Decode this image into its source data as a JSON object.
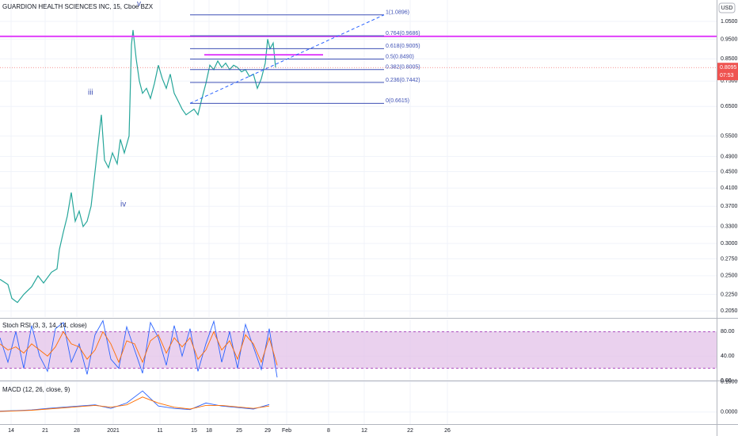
{
  "chart_data": [
    {
      "type": "line",
      "title": "GUARDION HEALTH SCIENCES INC, 15, Cboe BZX",
      "currency": "USD",
      "log_scale": true,
      "grid": true,
      "xlim": [
        0,
        181
      ],
      "ylim": [
        0.198,
        1.185
      ],
      "yticks": [
        {
          "value": 1.05,
          "label": "1.0500"
        },
        {
          "value": 0.95,
          "label": "0.9500"
        },
        {
          "value": 0.85,
          "label": "0.8500"
        },
        {
          "value": 0.75,
          "label": "0.7500"
        },
        {
          "value": 0.65,
          "label": "0.6500"
        },
        {
          "value": 0.55,
          "label": "0.5500"
        },
        {
          "value": 0.49,
          "label": "0.4900"
        },
        {
          "value": 0.45,
          "label": "0.4500"
        },
        {
          "value": 0.41,
          "label": "0.4100"
        },
        {
          "value": 0.37,
          "label": "0.3700"
        },
        {
          "value": 0.33,
          "label": "0.3300"
        },
        {
          "value": 0.3,
          "label": "0.3000"
        },
        {
          "value": 0.275,
          "label": "0.2750"
        },
        {
          "value": 0.25,
          "label": "0.2500"
        },
        {
          "value": 0.225,
          "label": "0.2250"
        },
        {
          "value": 0.205,
          "label": "0.2050"
        }
      ],
      "xticks": [
        {
          "value": 2.8,
          "label": "14"
        },
        {
          "value": 11.4,
          "label": "21"
        },
        {
          "value": 19.4,
          "label": "28"
        },
        {
          "value": 28.6,
          "label": "2021"
        },
        {
          "value": 40.4,
          "label": "11"
        },
        {
          "value": 49,
          "label": "15"
        },
        {
          "value": 52.8,
          "label": "18"
        },
        {
          "value": 60.4,
          "label": "25"
        },
        {
          "value": 67.6,
          "label": "29"
        },
        {
          "value": 72.4,
          "label": "Feb"
        },
        {
          "value": 83,
          "label": "8"
        },
        {
          "value": 92,
          "label": "12"
        },
        {
          "value": 103.6,
          "label": "22"
        },
        {
          "value": 113,
          "label": "26"
        }
      ],
      "series": [
        {
          "color": "#26a69a",
          "x": [
            0,
            2,
            3,
            4.4,
            6,
            8,
            9.6,
            11,
            13,
            14.4,
            15,
            16,
            17,
            18,
            19,
            20,
            21,
            22,
            23,
            24,
            25,
            25.6,
            26.4,
            27.4,
            28.4,
            29.6,
            30.4,
            31.4,
            32.6,
            33.2,
            33.6,
            34.4,
            35.2,
            36,
            37,
            38,
            39,
            40,
            41,
            42,
            43,
            44,
            45,
            46,
            47,
            48,
            49,
            50,
            51,
            52,
            53,
            54,
            55,
            56,
            57,
            58,
            59,
            60,
            61,
            62,
            63,
            64,
            65,
            66,
            67,
            67.6,
            68.2,
            69,
            69.6
          ],
          "values": [
            0.245,
            0.238,
            0.22,
            0.215,
            0.225,
            0.235,
            0.25,
            0.24,
            0.255,
            0.26,
            0.29,
            0.32,
            0.35,
            0.4,
            0.34,
            0.36,
            0.33,
            0.34,
            0.37,
            0.45,
            0.55,
            0.62,
            0.48,
            0.46,
            0.5,
            0.47,
            0.54,
            0.5,
            0.55,
            0.92,
            1.0,
            0.85,
            0.75,
            0.7,
            0.72,
            0.68,
            0.74,
            0.82,
            0.76,
            0.72,
            0.78,
            0.7,
            0.67,
            0.64,
            0.62,
            0.63,
            0.64,
            0.62,
            0.68,
            0.74,
            0.82,
            0.8,
            0.84,
            0.81,
            0.83,
            0.8,
            0.82,
            0.81,
            0.79,
            0.8,
            0.77,
            0.78,
            0.72,
            0.76,
            0.83,
            0.95,
            0.9,
            0.93,
            0.8095
          ]
        }
      ],
      "last_price": 0.8095,
      "countdown": "07:53",
      "fib": {
        "x": [
          48,
          97
        ],
        "color": "#3f51b5",
        "levels": [
          {
            "value": 1.0896,
            "label": "1(1.0896)"
          },
          {
            "value": 0.9686,
            "label": "0.764(0.9686)"
          },
          {
            "value": 0.9005,
            "label": "0.618(0.9005)"
          },
          {
            "value": 0.849,
            "label": "0.5(0.8490)"
          },
          {
            "value": 0.8005,
            "label": "0.382(0.8005)"
          },
          {
            "value": 0.7442,
            "label": "0.236(0.7442)"
          },
          {
            "value": 0.6615,
            "label": "0(0.6615)"
          }
        ]
      },
      "horizontal_lines": [
        {
          "value": 0.965,
          "color": "#e040fb",
          "x": [
            0,
            181
          ]
        },
        {
          "value": 0.87,
          "color": "#e040fb",
          "x": [
            51.6,
            81.6
          ]
        }
      ],
      "trend_line": {
        "x": [
          48,
          97
        ],
        "values": [
          0.6615,
          1.0896
        ],
        "color": "#2962ff"
      },
      "annotations": [
        "v",
        "iii",
        "iv"
      ]
    },
    {
      "type": "line",
      "title": "Stoch RSI (3, 3, 14, 14, close)",
      "xlim": [
        0,
        181
      ],
      "ylim": [
        0,
        100
      ],
      "band": [
        20,
        80
      ],
      "band_color": "#e1bee7",
      "yticks": [
        {
          "value": 80,
          "label": "80.00"
        },
        {
          "value": 40,
          "label": "40.00"
        },
        {
          "value": 0,
          "label": "0.00"
        }
      ],
      "x": [
        0,
        2,
        4,
        6,
        8,
        10,
        12,
        14,
        16,
        18,
        20,
        22,
        24,
        26,
        28,
        30,
        32,
        34,
        36,
        38,
        40,
        42,
        44,
        46,
        48,
        50,
        52,
        54,
        56,
        58,
        60,
        62,
        64,
        66,
        68,
        70
      ],
      "series": [
        {
          "color": "#2962ff",
          "values": [
            70,
            30,
            80,
            20,
            90,
            40,
            15,
            85,
            95,
            30,
            60,
            10,
            75,
            98,
            35,
            20,
            88,
            50,
            12,
            95,
            70,
            25,
            90,
            40,
            85,
            15,
            60,
            97,
            30,
            80,
            20,
            92,
            55,
            18,
            85,
            5
          ]
        },
        {
          "color": "#ff6d00",
          "values": [
            60,
            50,
            55,
            45,
            60,
            50,
            40,
            55,
            80,
            60,
            55,
            35,
            50,
            80,
            60,
            30,
            65,
            60,
            30,
            65,
            75,
            45,
            70,
            55,
            70,
            35,
            50,
            80,
            50,
            65,
            35,
            75,
            60,
            30,
            70,
            25
          ]
        }
      ]
    },
    {
      "type": "line",
      "title": "MACD (12, 26, close, 9)",
      "xlim": [
        0,
        181
      ],
      "ylim": [
        -0.04,
        0.102
      ],
      "yticks": [
        {
          "value": 0.1,
          "label": "0.1000"
        },
        {
          "value": 0,
          "label": "0.0000"
        }
      ],
      "x": [
        0,
        4,
        8,
        12,
        16,
        20,
        24,
        28,
        32,
        36,
        40,
        44,
        48,
        52,
        56,
        60,
        64,
        68
      ],
      "series": [
        {
          "color": "#2962ff",
          "values": [
            0.003,
            0.005,
            0.007,
            0.012,
            0.016,
            0.02,
            0.024,
            0.012,
            0.03,
            0.07,
            0.02,
            0.012,
            0.008,
            0.03,
            0.02,
            0.015,
            0.01,
            0.025
          ]
        },
        {
          "color": "#ff6d00",
          "values": [
            0.002,
            0.004,
            0.006,
            0.01,
            0.014,
            0.018,
            0.022,
            0.016,
            0.024,
            0.05,
            0.03,
            0.016,
            0.01,
            0.022,
            0.022,
            0.017,
            0.012,
            0.02
          ]
        }
      ]
    }
  ]
}
